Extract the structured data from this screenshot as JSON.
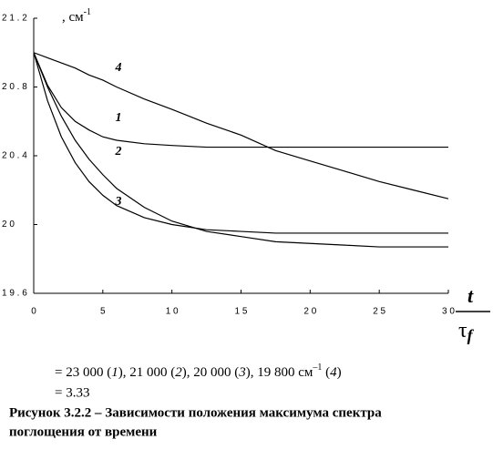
{
  "chart_data": {
    "type": "line",
    "y_label": ", см",
    "y_label_sup": "-1",
    "x_label_top": "t",
    "x_label_bottom": "τ",
    "x_label_sub": "f",
    "x": [
      0,
      1,
      2,
      3,
      4,
      5,
      6,
      8,
      10,
      12.5,
      15,
      17.5,
      20,
      22.5,
      25,
      27.5,
      30
    ],
    "series": [
      {
        "name": "1",
        "color": "#000000",
        "values": [
          21.0,
          20.81,
          20.68,
          20.6,
          20.55,
          20.51,
          20.49,
          20.47,
          20.46,
          20.45,
          20.45,
          20.45,
          20.45,
          20.45,
          20.45,
          20.45,
          20.45
        ]
      },
      {
        "name": "2",
        "color": "#000000",
        "values": [
          21.0,
          20.8,
          20.63,
          20.49,
          20.38,
          20.29,
          20.21,
          20.1,
          20.02,
          19.96,
          19.93,
          19.9,
          19.89,
          19.88,
          19.87,
          19.87,
          19.87
        ]
      },
      {
        "name": "3",
        "color": "#000000",
        "values": [
          21.0,
          20.72,
          20.51,
          20.36,
          20.25,
          20.17,
          20.11,
          20.04,
          20.0,
          19.97,
          19.96,
          19.95,
          19.95,
          19.95,
          19.95,
          19.95,
          19.95
        ]
      },
      {
        "name": "4",
        "color": "#000000",
        "values": [
          21.0,
          20.97,
          20.94,
          20.91,
          20.87,
          20.84,
          20.8,
          20.73,
          20.67,
          20.59,
          20.52,
          20.43,
          20.37,
          20.31,
          20.25,
          20.2,
          20.15
        ]
      }
    ],
    "xlim": [
      0,
      30
    ],
    "ylim": [
      19.6,
      21.2
    ],
    "xticks": [
      0,
      5,
      {
        "value": 10,
        "label": "1 0"
      },
      {
        "value": 15,
        "label": "1 5"
      },
      {
        "value": 20,
        "label": "2 0"
      },
      {
        "value": 25,
        "label": "2 5"
      },
      {
        "value": 30,
        "label": "3 0"
      }
    ],
    "yticks": [
      {
        "value": 19.6,
        "label": "1 9 . 6"
      },
      {
        "value": 20,
        "label": "2 0"
      },
      {
        "value": 20.4,
        "label": "2 0 . 4"
      },
      {
        "value": 20.8,
        "label": "2 0 . 8"
      },
      {
        "value": 21.2,
        "label": "2 1 . 2"
      }
    ]
  },
  "caption": {
    "line1": [
      "= 23 000 (",
      "1",
      "), 21 000 (",
      "2",
      "), 20 000 (",
      "3",
      "), 19 800 см",
      "–1",
      " (",
      "4",
      ")"
    ],
    "line2": "= 3.33",
    "figure_title_1": "Рисунок 3.2.2 – Зависимости положения максимума спектра",
    "figure_title_2": "поглощения от времени"
  }
}
